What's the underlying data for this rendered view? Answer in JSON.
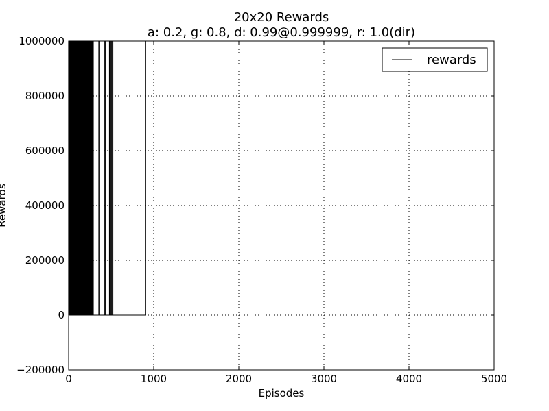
{
  "chart_data": {
    "type": "line",
    "title": "20x20 Rewards",
    "subtitle": "a: 0.2, g: 0.8, d: 0.99@0.999999, r: 1.0(dir)",
    "xlabel": "Episodes",
    "ylabel": "Rewards",
    "xlim": [
      0,
      5000
    ],
    "ylim": [
      -200000,
      1000000
    ],
    "x_ticks": [
      0,
      1000,
      2000,
      3000,
      4000,
      5000
    ],
    "x_tick_labels": [
      "0",
      "1000",
      "2000",
      "3000",
      "4000",
      "5000"
    ],
    "y_ticks": [
      -200000,
      0,
      200000,
      400000,
      600000,
      800000,
      1000000
    ],
    "y_tick_labels": [
      "−200000",
      "0",
      "200000",
      "400000",
      "600000",
      "800000",
      "1000000"
    ],
    "grid": true,
    "grid_style": "dotted",
    "legend_position": "top-right",
    "series_color": "#000000",
    "series": [
      {
        "name": "rewards",
        "spike_value": 1000000,
        "baseline_value": 0,
        "dense_range": [
          0,
          290
        ],
        "spike_episodes": [
          0,
          8,
          15,
          22,
          30,
          37,
          45,
          52,
          60,
          67,
          75,
          82,
          90,
          97,
          105,
          112,
          120,
          127,
          135,
          142,
          150,
          157,
          165,
          172,
          180,
          187,
          195,
          202,
          210,
          217,
          225,
          232,
          240,
          247,
          255,
          262,
          270,
          277,
          285,
          290,
          355,
          365,
          420,
          430,
          480,
          490,
          500,
          510,
          520,
          900,
          905
        ]
      }
    ]
  }
}
